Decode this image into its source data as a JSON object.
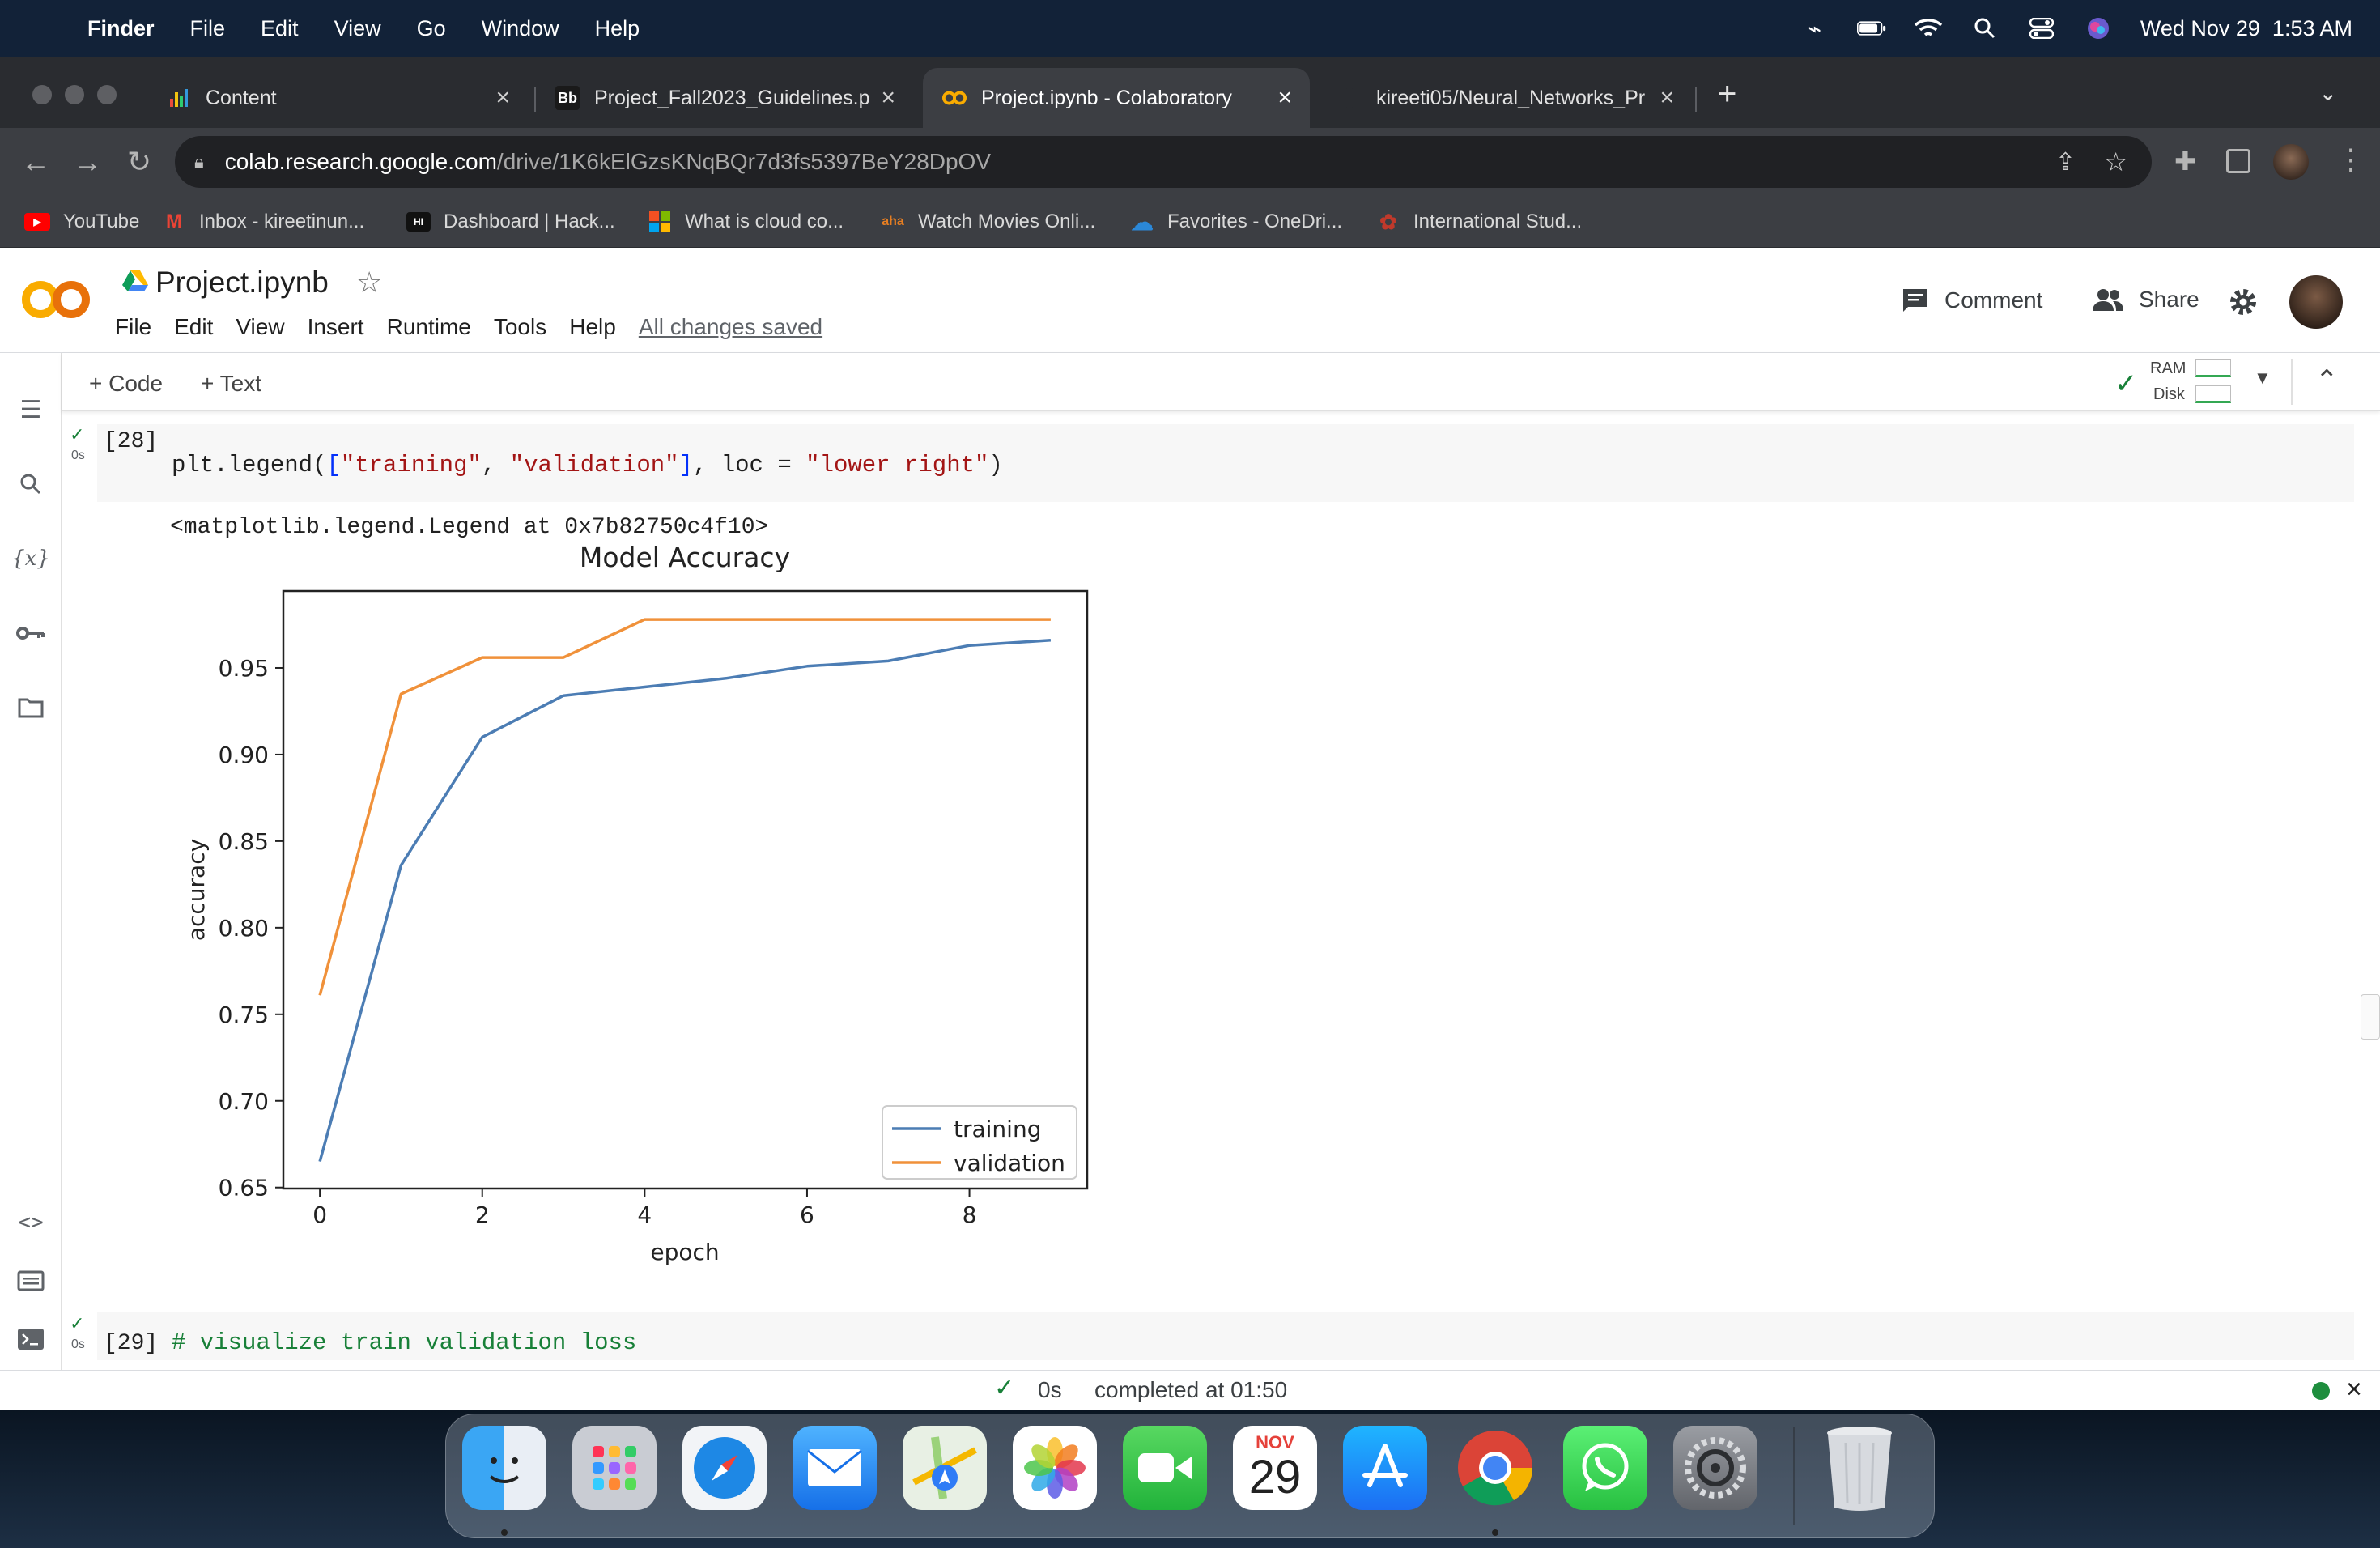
{
  "menubar": {
    "app": "Finder",
    "items": [
      "File",
      "Edit",
      "View",
      "Go",
      "Window",
      "Help"
    ],
    "clock": "Wed Nov 29  1:53 AM",
    "status_icons": [
      "airpods-icon",
      "battery-icon",
      "wifi-icon",
      "spotlight-icon",
      "control-center-icon",
      "siri-icon"
    ]
  },
  "browser": {
    "tabs": [
      {
        "label": "Content",
        "icon": "chart-favicon",
        "active": false
      },
      {
        "label": "Project_Fall2023_Guidelines.p",
        "icon": "bb-favicon",
        "active": false
      },
      {
        "label": "Project.ipynb - Colaboratory",
        "icon": "colab-favicon",
        "active": true
      },
      {
        "label": "kireeti05/Neural_Networks_Pr",
        "icon": "github-favicon",
        "active": false
      }
    ],
    "url_host": "colab.research.google.com",
    "url_path": "/drive/1K6kElGzsKNqBQr7d3fs5397BeY28DpOV",
    "bookmarks": [
      {
        "label": "YouTube",
        "color": "#ff0000",
        "glyph": "▶"
      },
      {
        "label": "Inbox - kireetinun...",
        "color": "#ea4335",
        "glyph": "M"
      },
      {
        "label": "Dashboard | Hack...",
        "color": "#111111",
        "glyph": "HI"
      },
      {
        "label": "What is cloud co...",
        "color": "#00a4ef",
        "glyph": "⊞"
      },
      {
        "label": "Watch Movies Onli...",
        "color": "#c0392b",
        "glyph": "aha"
      },
      {
        "label": "Favorites - OneDri...",
        "color": "#0a66c2",
        "glyph": "☁"
      },
      {
        "label": "International Stud...",
        "color": "#b71c1c",
        "glyph": "✿"
      }
    ]
  },
  "colab": {
    "title": "Project.ipynb",
    "menu": [
      "File",
      "Edit",
      "View",
      "Insert",
      "Runtime",
      "Tools",
      "Help"
    ],
    "saved_status": "All changes saved",
    "comment_label": "Comment",
    "share_label": "Share",
    "add_code": "+ Code",
    "add_text": "+ Text",
    "ram_label": "RAM",
    "disk_label": "Disk",
    "cell28": {
      "exec": "[28]",
      "runtime": "0s",
      "code_prefix": "plt.legend(",
      "code_bracket_open": "[",
      "code_s1": "\"training\"",
      "code_comma": ", ",
      "code_s2": "\"validation\"",
      "code_bracket_close": "]",
      "code_mid": ", loc = ",
      "code_s3": "\"lower right\"",
      "code_suffix": ")",
      "output_text": "<matplotlib.legend.Legend at 0x7b82750c4f10>"
    },
    "cell29": {
      "exec": "[29]",
      "runtime": "0s",
      "code": "# visualize train validation loss"
    },
    "status": {
      "time": "0s",
      "message": "completed at 01:50"
    }
  },
  "chart_data": {
    "type": "line",
    "title": "Model Accuracy",
    "xlabel": "epoch",
    "ylabel": "accuracy",
    "x": [
      0,
      1,
      2,
      3,
      4,
      5,
      6,
      7,
      8,
      9
    ],
    "series": [
      {
        "name": "training",
        "color": "#4c7db4",
        "values": [
          0.665,
          0.836,
          0.91,
          0.934,
          0.939,
          0.944,
          0.951,
          0.954,
          0.963,
          0.966
        ]
      },
      {
        "name": "validation",
        "color": "#f0913a",
        "values": [
          0.761,
          0.935,
          0.956,
          0.956,
          0.978,
          0.978,
          0.978,
          0.978,
          0.978,
          0.978
        ]
      }
    ],
    "xticks": [
      0,
      2,
      4,
      6,
      8
    ],
    "xtick_labels": [
      "0",
      "2",
      "4",
      "6",
      "8"
    ],
    "yticks": [
      0.65,
      0.7,
      0.75,
      0.8,
      0.85,
      0.9,
      0.95
    ],
    "ytick_labels": [
      "0.65",
      "0.70",
      "0.75",
      "0.80",
      "0.85",
      "0.90",
      "0.95"
    ],
    "xlim": [
      -0.45,
      9.45
    ],
    "ylim": [
      0.6494,
      0.9944
    ],
    "legend": "lower right",
    "grid": false
  },
  "dock": {
    "apps": [
      "Finder",
      "Launchpad",
      "Safari",
      "Mail",
      "Maps",
      "Photos",
      "FaceTime",
      "Calendar",
      "App Store",
      "Chrome",
      "WhatsApp",
      "System Settings",
      "Trash"
    ],
    "calendar_month": "NOV",
    "calendar_day": "29"
  }
}
